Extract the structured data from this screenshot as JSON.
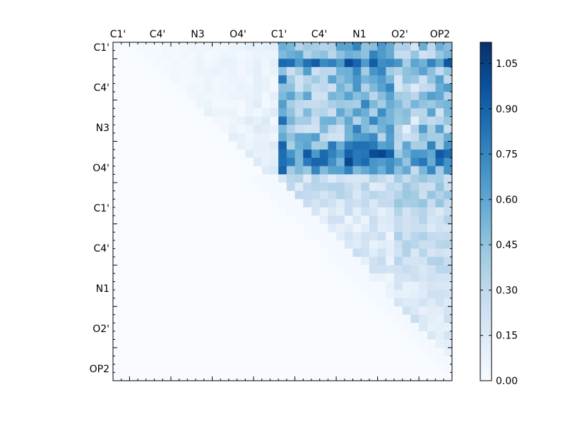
{
  "chart_data": {
    "type": "heatmap",
    "title": "",
    "xlabel": "",
    "ylabel": "",
    "x_tick_labels": [
      "C1'",
      "C4'",
      "N3",
      "O4'",
      "C1'",
      "C4'",
      "N1",
      "O2'",
      "OP2"
    ],
    "y_tick_labels": [
      "C1'",
      "C4'",
      "N3",
      "O4'",
      "C1'",
      "C4'",
      "N1",
      "O2'",
      "OP2"
    ],
    "grid_size": 41,
    "colormap": "Blues",
    "colorbar": {
      "min": 0.0,
      "max": 1.12,
      "ticks": [
        0.0,
        0.15,
        0.3,
        0.45,
        0.6,
        0.75,
        0.9,
        1.05
      ],
      "tick_labels": [
        "0.00",
        "0.15",
        "0.30",
        "0.45",
        "0.60",
        "0.75",
        "0.90",
        "1.05"
      ],
      "position": "right"
    },
    "peak_value": 1.12,
    "structure": "upper-triangular distance matrix; near-zero values below the diagonal and in the top-left block, strongest values (0.7–1.1) in rows 13–14 against columns 20–39"
  }
}
